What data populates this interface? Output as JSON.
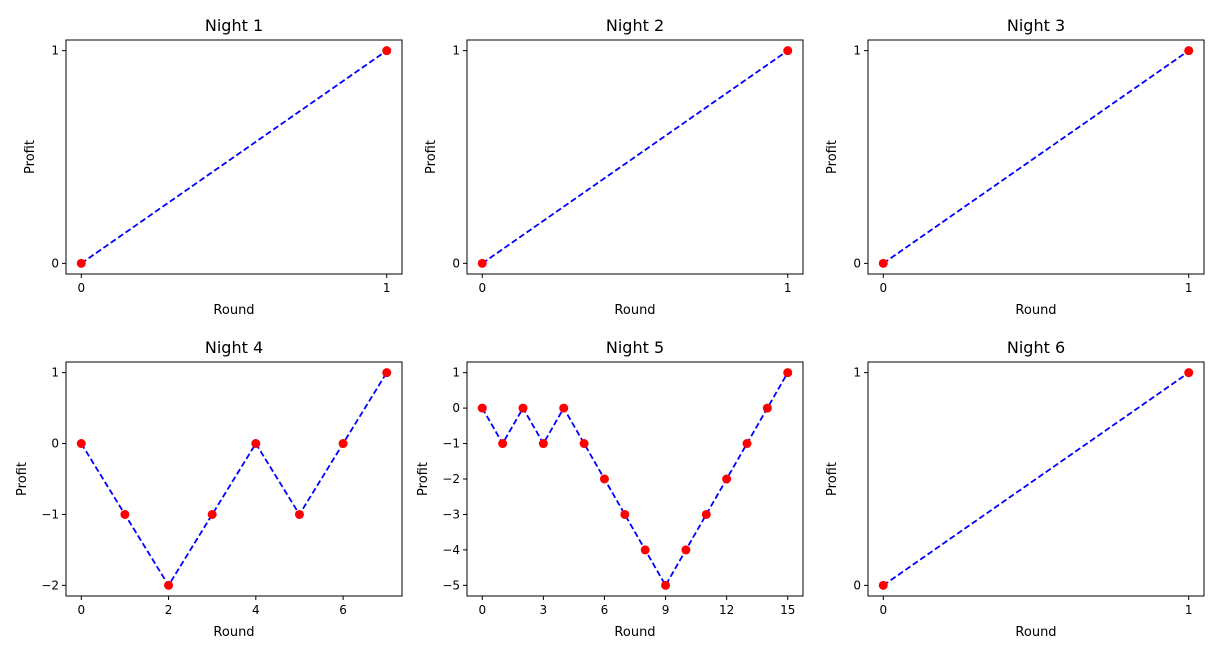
{
  "style": {
    "line_color": "#0000ff",
    "marker_color": "#ff0000",
    "line_style": "dashed"
  },
  "chart_data": [
    {
      "type": "line",
      "title": "Night 1",
      "xlabel": "Round",
      "ylabel": "Profit",
      "x": [
        0,
        1
      ],
      "y": [
        0,
        1
      ],
      "xticks": [
        0,
        1
      ],
      "yticks": [
        0,
        1
      ],
      "xlim": [
        -0.05,
        1.05
      ],
      "ylim": [
        -0.05,
        1.05
      ],
      "grid": false
    },
    {
      "type": "line",
      "title": "Night 2",
      "xlabel": "Round",
      "ylabel": "Profit",
      "x": [
        0,
        1
      ],
      "y": [
        0,
        1
      ],
      "xticks": [
        0,
        1
      ],
      "yticks": [
        0,
        1
      ],
      "xlim": [
        -0.05,
        1.05
      ],
      "ylim": [
        -0.05,
        1.05
      ],
      "grid": false
    },
    {
      "type": "line",
      "title": "Night 3",
      "xlabel": "Round",
      "ylabel": "Profit",
      "x": [
        0,
        1
      ],
      "y": [
        0,
        1
      ],
      "xticks": [
        0,
        1
      ],
      "yticks": [
        0,
        1
      ],
      "xlim": [
        -0.05,
        1.05
      ],
      "ylim": [
        -0.05,
        1.05
      ],
      "grid": false
    },
    {
      "type": "line",
      "title": "Night 4",
      "xlabel": "Round",
      "ylabel": "Profit",
      "x": [
        0,
        1,
        2,
        3,
        4,
        5,
        6,
        7
      ],
      "y": [
        0,
        -1,
        -2,
        -1,
        0,
        -1,
        0,
        1
      ],
      "xticks": [
        0,
        2,
        4,
        6
      ],
      "yticks": [
        -2,
        -1,
        0,
        1
      ],
      "xlim": [
        -0.35,
        7.35
      ],
      "ylim": [
        -2.15,
        1.15
      ],
      "grid": false
    },
    {
      "type": "line",
      "title": "Night 5",
      "xlabel": "Round",
      "ylabel": "Profit",
      "x": [
        0,
        1,
        2,
        3,
        4,
        5,
        6,
        7,
        8,
        9,
        10,
        11,
        12,
        13,
        14,
        15
      ],
      "y": [
        0,
        -1,
        0,
        -1,
        0,
        -1,
        -2,
        -3,
        -4,
        -5,
        -4,
        -3,
        -2,
        -1,
        0,
        1
      ],
      "xticks": [
        0,
        3,
        6,
        9,
        12,
        15
      ],
      "yticks": [
        -5,
        -4,
        -3,
        -2,
        -1,
        0,
        1
      ],
      "xlim": [
        -0.75,
        15.75
      ],
      "ylim": [
        -5.3,
        1.3
      ],
      "grid": false
    },
    {
      "type": "line",
      "title": "Night 6",
      "xlabel": "Round",
      "ylabel": "Profit",
      "x": [
        0,
        1
      ],
      "y": [
        0,
        1
      ],
      "xticks": [
        0,
        1
      ],
      "yticks": [
        0,
        1
      ],
      "xlim": [
        -0.05,
        1.05
      ],
      "ylim": [
        -0.05,
        1.05
      ],
      "grid": false
    }
  ]
}
